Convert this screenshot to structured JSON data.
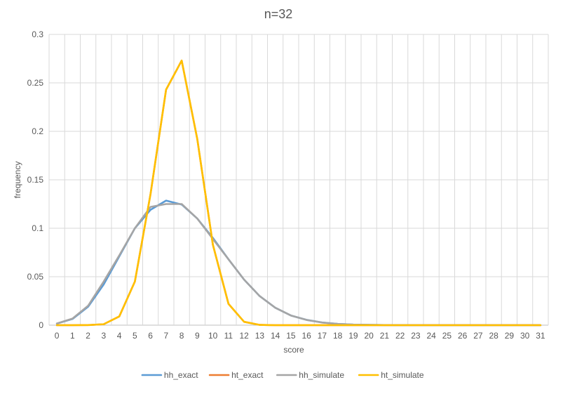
{
  "chart_data": {
    "type": "line",
    "title": "n=32",
    "xlabel": "score",
    "ylabel": "frequency",
    "ylim": [
      0,
      0.3
    ],
    "y_ticks": [
      "0",
      "0.05",
      "0.1",
      "0.15",
      "0.2",
      "0.25",
      "0.3"
    ],
    "x": [
      0,
      1,
      2,
      3,
      4,
      5,
      6,
      7,
      8,
      9,
      10,
      11,
      12,
      13,
      14,
      15,
      16,
      17,
      18,
      19,
      20,
      21,
      22,
      23,
      24,
      25,
      26,
      27,
      28,
      29,
      30,
      31
    ],
    "grid": true,
    "legend_position": "bottom",
    "series": [
      {
        "name": "hh_exact",
        "color": "#5B9BD5",
        "values": [
          0.0016,
          0.0064,
          0.019,
          0.042,
          0.071,
          0.1,
          0.119,
          0.1285,
          0.1245,
          0.11,
          0.09,
          0.068,
          0.047,
          0.03,
          0.018,
          0.01,
          0.0055,
          0.0028,
          0.0013,
          0.0006,
          0.0003,
          0.0001,
          5e-05,
          0,
          0,
          0,
          0,
          0,
          0,
          0,
          0,
          0
        ]
      },
      {
        "name": "ht_exact",
        "color": "#ED7D31",
        "values": [
          0,
          0,
          0.0001,
          0.001,
          0.009,
          0.045,
          0.135,
          0.243,
          0.273,
          0.192,
          0.083,
          0.022,
          0.0035,
          0.0003,
          0,
          0,
          0,
          0,
          0,
          0,
          0,
          0,
          0,
          0,
          0,
          0,
          0,
          0,
          0,
          0,
          0,
          0
        ]
      },
      {
        "name": "hh_simulate",
        "color": "#A5A5A5",
        "values": [
          0.0017,
          0.0068,
          0.02,
          0.045,
          0.072,
          0.1,
          0.122,
          0.125,
          0.125,
          0.11,
          0.089,
          0.068,
          0.047,
          0.03,
          0.018,
          0.01,
          0.0054,
          0.0027,
          0.0013,
          0.0006,
          0.0003,
          0.0001,
          5e-05,
          0,
          0,
          0,
          0,
          0,
          0,
          0,
          0,
          0
        ]
      },
      {
        "name": "ht_simulate",
        "color": "#FFC000",
        "values": [
          0,
          0,
          0.0001,
          0.001,
          0.009,
          0.045,
          0.135,
          0.243,
          0.273,
          0.192,
          0.083,
          0.022,
          0.0035,
          0.0003,
          0,
          0,
          0,
          0,
          0,
          0,
          0,
          0,
          0,
          0,
          0,
          0,
          0,
          0,
          0,
          0,
          0,
          0
        ]
      }
    ]
  }
}
